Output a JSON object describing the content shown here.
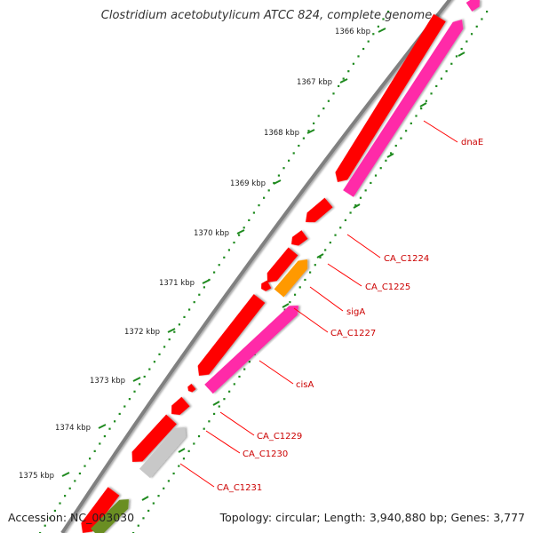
{
  "title": "Clostridium acetobutylicum ATCC 824, complete genome",
  "footer": {
    "accession": "Accession: NC_003030",
    "summary": "Topology: circular; Length: 3,940,880 bp; Genes: 3,777"
  },
  "colors": {
    "backbone": "#808080",
    "ticks": "#1e8a1e",
    "gene_red": "#ff0000",
    "gene_pink": "#ff2aa8",
    "gene_orange": "#ff9900",
    "gene_grey": "#c8c8c8",
    "gene_olive": "#6b8e23",
    "label_line": "#ff0000"
  },
  "ticks": [
    {
      "label": "1366 kbp"
    },
    {
      "label": "1367 kbp"
    },
    {
      "label": "1368 kbp"
    },
    {
      "label": "1369 kbp"
    },
    {
      "label": "1370 kbp"
    },
    {
      "label": "1371 kbp"
    },
    {
      "label": "1372 kbp"
    },
    {
      "label": "1373 kbp"
    },
    {
      "label": "1374 kbp"
    },
    {
      "label": "1375 kbp"
    }
  ],
  "gene_labels": [
    {
      "name": "dnaE"
    },
    {
      "name": "CA_C1224"
    },
    {
      "name": "CA_C1225"
    },
    {
      "name": "sigA"
    },
    {
      "name": "CA_C1227"
    },
    {
      "name": "cisA"
    },
    {
      "name": "CA_C1229"
    },
    {
      "name": "CA_C1230"
    },
    {
      "name": "CA_C1231"
    }
  ]
}
